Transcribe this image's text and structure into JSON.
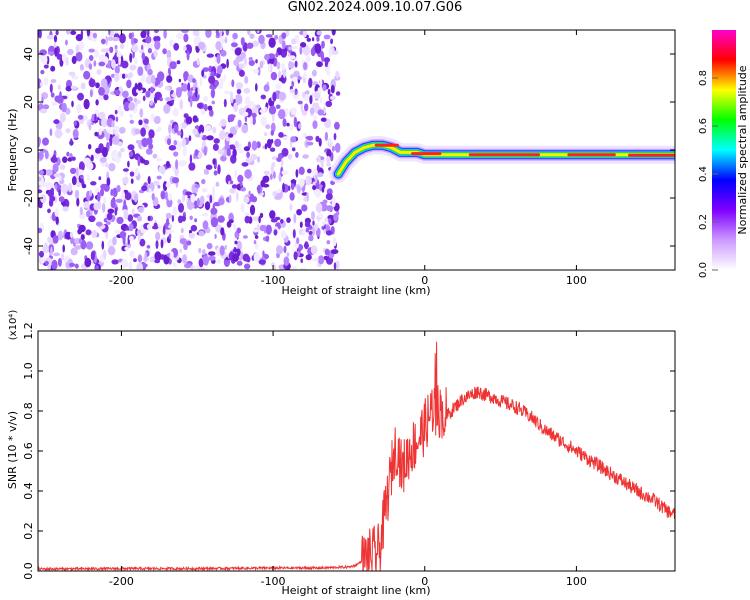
{
  "title": "GN02.2024.009.10.07.G06",
  "chart_data": [
    {
      "type": "heatmap",
      "xlabel": "Height of straight line (km)",
      "ylabel": "Frequency (Hz)",
      "xlim": [
        -255,
        165
      ],
      "ylim": [
        -50,
        50
      ],
      "xticks": [
        -200,
        -100,
        0,
        100
      ],
      "yticks": [
        -40,
        -20,
        0,
        20,
        40
      ],
      "colorbar": {
        "label": "Normalized spectral amplitude",
        "range": [
          0,
          1
        ],
        "ticks": [
          "0.0",
          "0.2",
          "0.4",
          "0.6",
          "0.8"
        ],
        "colormap": [
          "#ffffff",
          "#cc99ff",
          "#7f00ff",
          "#0000ff",
          "#00ffff",
          "#00ff00",
          "#ffff00",
          "#ff0000",
          "#ff00cc"
        ]
      },
      "noise_region_x": [
        -255,
        -57
      ],
      "signal_track": {
        "x": [
          -57,
          -52,
          -46,
          -40,
          -34,
          -28,
          -22,
          -16,
          -10,
          -5,
          0,
          20,
          50,
          80,
          95,
          130,
          165
        ],
        "y": [
          -10,
          -5,
          -1,
          1,
          2,
          2,
          1,
          -1,
          -1,
          -1,
          -2,
          -2,
          -2,
          -2,
          -2,
          -2,
          -2
        ]
      }
    },
    {
      "type": "line",
      "xlabel": "Height of straight line (km)",
      "ylabel": "SNR (10 * v/v)",
      "y_scale_note": "(x10⁴)",
      "xlim": [
        -255,
        165
      ],
      "ylim": [
        0,
        1.2
      ],
      "xticks": [
        -200,
        -100,
        0,
        100
      ],
      "yticks": [
        "0.0",
        "0.2",
        "0.4",
        "0.6",
        "0.8",
        "1.0",
        "1.2"
      ],
      "series": [
        {
          "color": "#ee3333",
          "x": [
            -255,
            -200,
            -150,
            -100,
            -70,
            -50,
            -45,
            -40,
            -35,
            -30,
            -28,
            -25,
            -22,
            -20,
            -18,
            -15,
            -10,
            -5,
            0,
            5,
            10,
            15,
            20,
            25,
            30,
            35,
            40,
            45,
            50,
            60,
            70,
            80,
            90,
            100,
            110,
            120,
            130,
            140,
            150,
            160,
            165
          ],
          "y": [
            0.01,
            0.012,
            0.012,
            0.015,
            0.015,
            0.02,
            0.03,
            0.06,
            0.08,
            0.1,
            0.2,
            0.35,
            0.5,
            0.6,
            0.62,
            0.5,
            0.6,
            0.65,
            0.72,
            0.82,
            0.8,
            0.78,
            0.82,
            0.86,
            0.88,
            0.9,
            0.88,
            0.87,
            0.85,
            0.82,
            0.77,
            0.7,
            0.65,
            0.6,
            0.55,
            0.5,
            0.45,
            0.4,
            0.36,
            0.3,
            0.28
          ]
        }
      ]
    }
  ]
}
